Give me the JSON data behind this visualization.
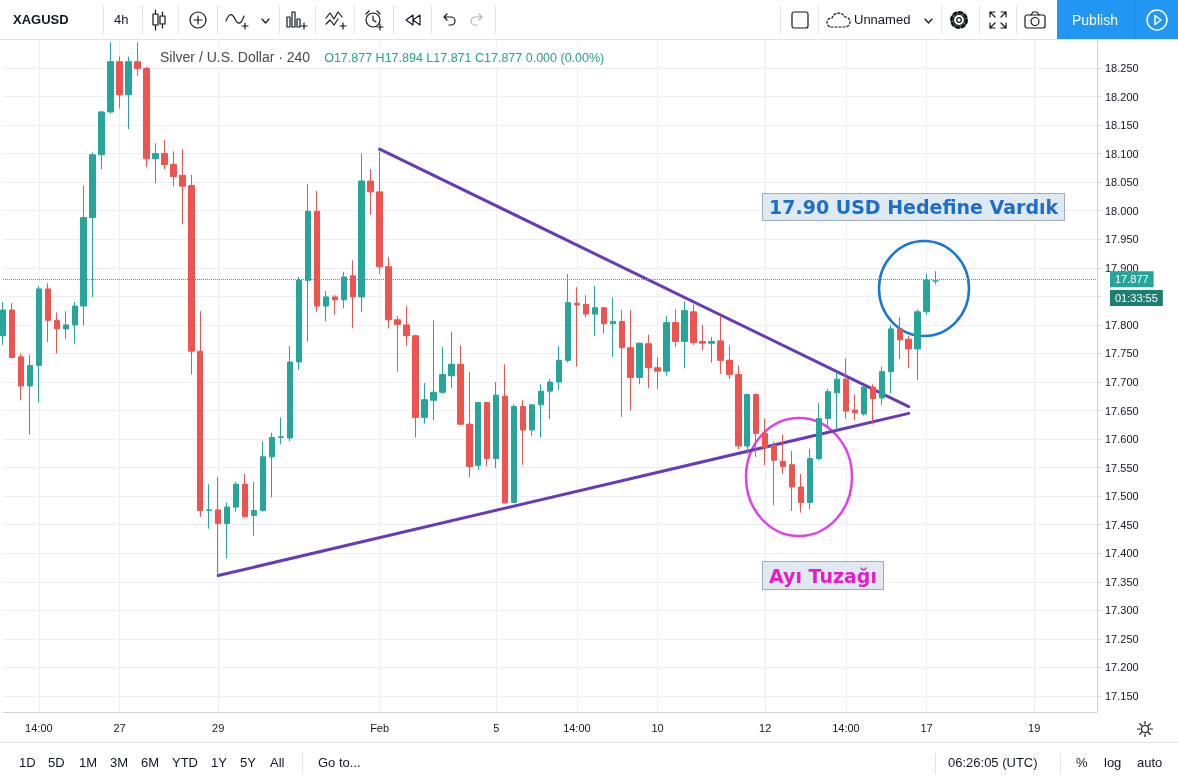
{
  "chart_data": {
    "type": "candlestick",
    "title": "Silver / U.S. Dollar · 240",
    "subtitle": "O17.877 H17.894 L17.871 C17.877 0.000 (0.00%)",
    "categories": [
      null,
      null,
      null,
      null,
      "14:00",
      null,
      null,
      null,
      null,
      null,
      null,
      null,
      null,
      "27",
      null,
      null,
      null,
      null,
      null,
      null,
      null,
      null,
      null,
      null,
      "29",
      null,
      null,
      null,
      null,
      null,
      null,
      null,
      null,
      null,
      null,
      null,
      null,
      null,
      null,
      null,
      null,
      null,
      "Feb",
      null,
      null,
      null,
      null,
      null,
      null,
      null,
      null,
      null,
      null,
      null,
      null,
      "5",
      null,
      null,
      null,
      null,
      null,
      null,
      null,
      null,
      "14:00",
      null,
      null,
      null,
      null,
      null,
      null,
      null,
      null,
      "10",
      null,
      null,
      null,
      null,
      null,
      null,
      null,
      null,
      null,
      null,
      null,
      "12",
      null,
      null,
      null,
      null,
      null,
      null,
      null,
      null,
      "14:00",
      null,
      null,
      null,
      null,
      null,
      null,
      null,
      null,
      "17",
      null,
      null,
      null,
      null,
      null,
      null,
      null,
      null,
      null,
      null,
      null,
      "19",
      null,
      null,
      null,
      null,
      null,
      null,
      null
    ],
    "ohlc": [
      [
        17.781,
        17.84,
        17.765,
        17.826
      ],
      [
        17.826,
        17.838,
        17.741,
        17.743
      ],
      [
        17.744,
        17.75,
        17.668,
        17.693
      ],
      [
        17.693,
        17.747,
        17.608,
        17.729
      ],
      [
        17.729,
        17.868,
        17.664,
        17.863
      ],
      [
        17.863,
        17.873,
        17.77,
        17.808
      ],
      [
        17.808,
        17.822,
        17.75,
        17.793
      ],
      [
        17.793,
        17.824,
        17.775,
        17.8
      ],
      [
        17.8,
        17.84,
        17.767,
        17.833
      ],
      [
        17.833,
        18.044,
        17.799,
        17.988
      ],
      [
        17.988,
        18.102,
        17.849,
        18.098
      ],
      [
        18.098,
        18.175,
        18.073,
        18.173
      ],
      [
        18.173,
        18.295,
        18.17,
        18.261
      ],
      [
        18.261,
        18.27,
        18.179,
        18.203
      ],
      [
        18.203,
        18.27,
        18.143,
        18.261
      ],
      [
        18.261,
        18.295,
        18.236,
        18.249
      ],
      [
        18.249,
        18.252,
        18.076,
        18.091
      ],
      [
        18.091,
        18.118,
        18.048,
        18.1
      ],
      [
        18.1,
        18.124,
        18.073,
        18.081
      ],
      [
        18.081,
        18.104,
        18.043,
        18.06
      ],
      [
        18.062,
        18.108,
        17.976,
        18.043
      ],
      [
        18.044,
        18.063,
        17.713,
        17.754
      ],
      [
        17.754,
        17.824,
        17.464,
        17.475
      ],
      [
        17.475,
        17.521,
        17.443,
        17.476
      ],
      [
        17.476,
        17.534,
        17.361,
        17.452
      ],
      [
        17.452,
        17.489,
        17.391,
        17.481
      ],
      [
        17.481,
        17.525,
        17.473,
        17.521
      ],
      [
        17.521,
        17.539,
        17.462,
        17.464
      ],
      [
        17.466,
        17.525,
        17.43,
        17.475
      ],
      [
        17.475,
        17.596,
        17.473,
        17.569
      ],
      [
        17.569,
        17.611,
        17.498,
        17.603
      ],
      [
        17.603,
        17.638,
        17.591,
        17.604
      ],
      [
        17.602,
        17.763,
        17.596,
        17.735
      ],
      [
        17.735,
        17.884,
        17.721,
        17.878
      ],
      [
        17.878,
        18.047,
        17.771,
        17.999
      ],
      [
        17.999,
        18.035,
        17.823,
        17.833
      ],
      [
        17.833,
        17.859,
        17.806,
        17.849
      ],
      [
        17.849,
        17.852,
        17.818,
        17.844
      ],
      [
        17.844,
        17.893,
        17.829,
        17.884
      ],
      [
        17.886,
        17.913,
        17.794,
        17.849
      ],
      [
        17.849,
        18.1,
        17.823,
        18.052
      ],
      [
        18.052,
        18.073,
        17.993,
        18.033
      ],
      [
        18.033,
        18.104,
        17.889,
        17.902
      ],
      [
        17.902,
        17.919,
        17.794,
        17.809
      ],
      [
        17.809,
        17.816,
        17.718,
        17.801
      ],
      [
        17.8,
        17.833,
        17.763,
        17.781
      ],
      [
        17.781,
        17.783,
        17.603,
        17.638
      ],
      [
        17.638,
        17.698,
        17.627,
        17.669
      ],
      [
        17.668,
        17.808,
        17.633,
        17.682
      ],
      [
        17.682,
        17.761,
        17.679,
        17.713
      ],
      [
        17.711,
        17.788,
        17.689,
        17.731
      ],
      [
        17.731,
        17.764,
        17.626,
        17.626
      ],
      [
        17.626,
        17.718,
        17.533,
        17.552
      ],
      [
        17.554,
        17.664,
        17.546,
        17.664
      ],
      [
        17.664,
        17.665,
        17.552,
        17.566
      ],
      [
        17.566,
        17.7,
        17.549,
        17.677
      ],
      [
        17.675,
        17.731,
        17.488,
        17.488
      ],
      [
        17.489,
        17.661,
        17.488,
        17.657
      ],
      [
        17.657,
        17.668,
        17.555,
        17.616
      ],
      [
        17.616,
        17.66,
        17.606,
        17.66
      ],
      [
        17.66,
        17.696,
        17.603,
        17.684
      ],
      [
        17.684,
        17.706,
        17.635,
        17.7
      ],
      [
        17.7,
        17.763,
        17.686,
        17.738
      ],
      [
        17.738,
        17.889,
        17.734,
        17.839
      ],
      [
        17.838,
        17.866,
        17.727,
        17.835
      ],
      [
        17.836,
        17.852,
        17.813,
        17.819
      ],
      [
        17.819,
        17.868,
        17.78,
        17.83
      ],
      [
        17.83,
        17.831,
        17.785,
        17.802
      ],
      [
        17.802,
        17.848,
        17.744,
        17.806
      ],
      [
        17.806,
        17.826,
        17.639,
        17.76
      ],
      [
        17.76,
        17.826,
        17.65,
        17.708
      ],
      [
        17.708,
        17.769,
        17.696,
        17.768
      ],
      [
        17.767,
        17.783,
        17.689,
        17.725
      ],
      [
        17.725,
        17.743,
        17.688,
        17.719
      ],
      [
        17.719,
        17.816,
        17.711,
        17.804
      ],
      [
        17.804,
        17.827,
        17.761,
        17.771
      ],
      [
        17.771,
        17.841,
        17.724,
        17.825
      ],
      [
        17.823,
        17.836,
        17.765,
        17.769
      ],
      [
        17.771,
        17.8,
        17.755,
        17.768
      ],
      [
        17.768,
        17.779,
        17.734,
        17.771
      ],
      [
        17.772,
        17.816,
        17.714,
        17.738
      ],
      [
        17.738,
        17.764,
        17.705,
        17.713
      ],
      [
        17.713,
        17.729,
        17.582,
        17.588
      ],
      [
        17.588,
        17.678,
        17.574,
        17.678
      ],
      [
        17.678,
        17.68,
        17.569,
        17.61
      ],
      [
        17.61,
        17.636,
        17.554,
        17.585
      ],
      [
        17.589,
        17.596,
        17.484,
        17.563
      ],
      [
        17.561,
        17.608,
        17.539,
        17.552
      ],
      [
        17.555,
        17.579,
        17.474,
        17.516
      ],
      [
        17.516,
        17.539,
        17.471,
        17.489
      ],
      [
        17.489,
        17.583,
        17.477,
        17.566
      ],
      [
        17.566,
        17.663,
        17.563,
        17.636
      ],
      [
        17.636,
        17.688,
        17.623,
        17.683
      ],
      [
        17.681,
        17.718,
        17.616,
        17.705
      ],
      [
        17.705,
        17.741,
        17.636,
        17.649
      ],
      [
        17.651,
        17.678,
        17.633,
        17.646
      ],
      [
        17.644,
        17.694,
        17.641,
        17.691
      ],
      [
        17.691,
        17.696,
        17.626,
        17.671
      ],
      [
        17.672,
        17.727,
        17.66,
        17.718
      ],
      [
        17.718,
        17.8,
        17.68,
        17.793
      ],
      [
        17.793,
        17.814,
        17.74,
        17.774
      ],
      [
        17.775,
        17.781,
        17.724,
        17.758
      ],
      [
        17.758,
        17.827,
        17.703,
        17.823
      ],
      [
        17.823,
        17.889,
        17.818,
        17.878
      ],
      [
        17.877,
        17.894,
        17.871,
        17.877
      ],
      null,
      null,
      null,
      null,
      null,
      null,
      null,
      null,
      null,
      null,
      null,
      null,
      null,
      null,
      null,
      null,
      null,
      null
    ],
    "colors": [
      "#26a69a",
      "#ef5350",
      "#ef5350",
      "#26a69a",
      "#26a69a",
      "#ef5350",
      "#ef5350",
      "#26a69a",
      "#26a69a",
      "#26a69a",
      "#26a69a",
      "#26a69a",
      "#26a69a",
      "#ef5350",
      "#26a69a",
      "#ef5350",
      "#ef5350",
      "#26a69a",
      "#ef5350",
      "#ef5350",
      "#ef5350",
      "#ef5350",
      "#ef5350",
      "#26a69a",
      "#ef5350",
      "#26a69a",
      "#26a69a",
      "#ef5350",
      "#26a69a",
      "#26a69a",
      "#26a69a",
      "#26a69a",
      "#26a69a",
      "#26a69a",
      "#26a69a",
      "#ef5350",
      "#26a69a",
      "#ef5350",
      "#26a69a",
      "#ef5350",
      "#26a69a",
      "#ef5350",
      "#ef5350",
      "#ef5350",
      "#ef5350",
      "#ef5350",
      "#ef5350",
      "#26a69a",
      "#26a69a",
      "#26a69a",
      "#26a69a",
      "#ef5350",
      "#ef5350",
      "#26a69a",
      "#ef5350",
      "#26a69a",
      "#ef5350",
      "#26a69a",
      "#ef5350",
      "#26a69a",
      "#26a69a",
      "#26a69a",
      "#26a69a",
      "#26a69a",
      "#ef5350",
      "#ef5350",
      "#26a69a",
      "#ef5350",
      "#26a69a",
      "#ef5350",
      "#ef5350",
      "#26a69a",
      "#ef5350",
      "#ef5350",
      "#26a69a",
      "#ef5350",
      "#26a69a",
      "#ef5350",
      "#ef5350",
      "#26a69a",
      "#ef5350",
      "#ef5350",
      "#ef5350",
      "#26a69a",
      "#ef5350",
      "#ef5350",
      "#ef5350",
      "#ef5350",
      "#ef5350",
      "#ef5350",
      "#26a69a",
      "#26a69a",
      "#26a69a",
      "#26a69a",
      "#ef5350",
      "#ef5350",
      "#26a69a",
      "#ef5350",
      "#26a69a",
      "#26a69a",
      "#ef5350",
      "#ef5350",
      "#26a69a",
      "#26a69a",
      "#26a69a",
      null,
      null,
      null,
      null,
      null,
      null,
      null,
      null,
      null,
      null,
      null,
      null,
      null,
      null,
      null,
      null,
      null,
      null
    ],
    "series": [
      {
        "type": "line",
        "color": "#673ab7",
        "values": [
          null,
          null,
          null,
          null,
          null,
          null,
          null,
          null,
          null,
          null,
          null,
          null,
          null,
          null,
          null,
          null,
          null,
          null,
          null,
          null,
          null,
          null,
          null,
          null,
          17.361,
          null,
          null,
          null,
          null,
          null,
          null,
          null,
          null,
          null,
          null,
          null,
          null,
          null,
          null,
          null,
          null,
          null,
          null,
          null,
          null,
          null,
          null,
          null,
          null,
          null,
          null,
          null,
          null,
          null,
          null,
          null,
          null,
          null,
          null,
          null,
          null,
          null,
          null,
          null,
          null,
          null,
          null,
          null,
          null,
          null,
          null,
          null,
          null,
          null,
          null,
          null,
          null,
          null,
          null,
          null,
          null,
          null,
          null,
          null,
          null,
          null,
          null,
          null,
          null,
          null,
          null,
          null,
          null,
          null,
          null,
          null,
          null,
          null,
          null,
          null,
          null,
          17.645,
          null,
          null,
          null,
          null,
          null,
          null,
          null,
          null,
          null,
          null,
          null,
          null,
          null,
          null,
          null,
          null,
          null,
          null,
          null,
          null,
          null
        ]
      },
      {
        "type": "line",
        "color": "#673ab7",
        "values": [
          null,
          null,
          null,
          null,
          null,
          null,
          null,
          null,
          null,
          null,
          null,
          null,
          null,
          null,
          null,
          null,
          null,
          null,
          null,
          null,
          null,
          null,
          null,
          null,
          null,
          null,
          null,
          null,
          null,
          null,
          null,
          null,
          null,
          null,
          null,
          null,
          null,
          null,
          null,
          null,
          null,
          null,
          18.108,
          null,
          null,
          null,
          null,
          null,
          null,
          null,
          null,
          null,
          null,
          null,
          null,
          null,
          null,
          null,
          null,
          null,
          null,
          null,
          null,
          null,
          null,
          null,
          null,
          null,
          null,
          null,
          null,
          null,
          null,
          null,
          null,
          null,
          null,
          null,
          null,
          null,
          null,
          null,
          null,
          null,
          null,
          null,
          null,
          null,
          null,
          null,
          null,
          null,
          null,
          null,
          null,
          null,
          null,
          null,
          null,
          null,
          null,
          17.657,
          null,
          null,
          null,
          null,
          null,
          null,
          null,
          null,
          null,
          null,
          null,
          null,
          null,
          null,
          null,
          null,
          null,
          null,
          null,
          null,
          null
        ]
      }
    ],
    "ylim": [
      17.122,
      18.299
    ],
    "yticks": [
      {
        "value": 17.15,
        "label": "17.150"
      },
      {
        "value": 17.2,
        "label": "17.200"
      },
      {
        "value": 17.25,
        "label": "17.250"
      },
      {
        "value": 17.3,
        "label": "17.300"
      },
      {
        "value": 17.35,
        "label": "17.350"
      },
      {
        "value": 17.4,
        "label": "17.400"
      },
      {
        "value": 17.45,
        "label": "17.450"
      },
      {
        "value": 17.5,
        "label": "17.500"
      },
      {
        "value": 17.55,
        "label": "17.550"
      },
      {
        "value": 17.6,
        "label": "17.600"
      },
      {
        "value": 17.65,
        "label": "17.650"
      },
      {
        "value": 17.7,
        "label": "17.700"
      },
      {
        "value": 17.75,
        "label": "17.750"
      },
      {
        "value": 17.8,
        "label": "17.800"
      },
      {
        "value": 17.85,
        "label": null
      },
      {
        "value": 17.9,
        "label": "17.900"
      },
      {
        "value": 17.95,
        "label": "17.950"
      },
      {
        "value": 18.0,
        "label": "18.000"
      },
      {
        "value": 18.05,
        "label": "18.050"
      },
      {
        "value": 18.1,
        "label": "18.100"
      },
      {
        "value": 18.15,
        "label": "18.150"
      },
      {
        "value": 18.2,
        "label": "18.200"
      },
      {
        "value": 18.25,
        "label": "18.250"
      }
    ],
    "grid": true,
    "ref_lines": [
      {
        "axis": "y",
        "value": 17.877,
        "label": "17.877",
        "color": "#26a69a",
        "line_style": "dotted"
      }
    ],
    "annotations": [
      "17.90 USD Hedefine Vardık",
      "Ayı Tuzağı",
      "01:33:55",
      "XAGUSD",
      "4h",
      "Unnamed",
      "Publish",
      "1D",
      "5D",
      "1M",
      "3M",
      "6M",
      "YTD",
      "1Y",
      "5Y",
      "All",
      "Go to...",
      "06:26:05 (UTC)",
      "%",
      "log",
      "auto"
    ]
  }
}
